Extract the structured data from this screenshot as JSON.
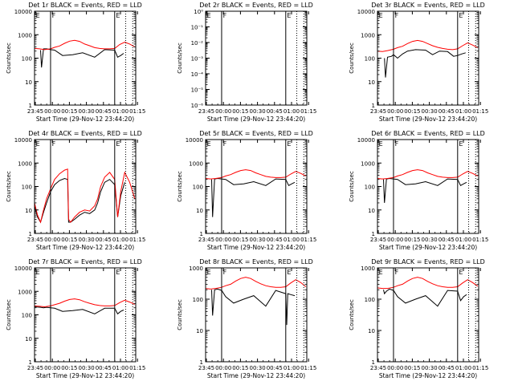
{
  "figure": {
    "background": "#ffffff",
    "axis_color": "#000000",
    "events_color": "#000000",
    "lld_color": "#ff0000",
    "ylabel": "Counts/sec",
    "xlabel": "Start Time (29-Nov-12 23:44:20)",
    "x_tick_labels": [
      "23:45",
      "00:00",
      "00:15",
      "00:30",
      "00:45",
      "01:00",
      "01:15"
    ],
    "vline_markers": [
      "E",
      "F",
      "E"
    ]
  },
  "chart_data": [
    {
      "type": "line",
      "title": "Det 1r BLACK = Events, RED = LLD",
      "xlabel": "Start Time (29-Nov-12 23:44:20)",
      "ylabel": "Counts/sec",
      "yscale": "log",
      "ylim": [
        1,
        10000
      ],
      "y_tick_labels": [
        "1",
        "10",
        "100",
        "1000",
        "10000"
      ],
      "x_minutes_range": [
        0,
        101
      ],
      "vlines_solid_min": [
        16,
        80
      ],
      "vlines_dotted_min": [
        91,
        98
      ],
      "series": [
        {
          "name": "Events",
          "color": "#000000",
          "x": [
            6,
            7,
            9,
            12,
            16,
            20,
            28,
            38,
            48,
            60,
            70,
            80,
            83,
            86,
            89
          ],
          "y": [
            220,
            40,
            250,
            250,
            230,
            220,
            130,
            140,
            170,
            110,
            230,
            220,
            110,
            130,
            160
          ]
        },
        {
          "name": "LLD",
          "color": "#ff0000",
          "x": [
            0,
            5,
            10,
            16,
            20,
            25,
            30,
            35,
            40,
            45,
            50,
            55,
            60,
            65,
            70,
            75,
            80,
            85,
            90,
            95,
            100
          ],
          "y": [
            260,
            250,
            230,
            250,
            290,
            330,
            430,
            530,
            580,
            520,
            400,
            340,
            280,
            260,
            250,
            250,
            260,
            380,
            480,
            400,
            300
          ]
        }
      ]
    },
    {
      "type": "line",
      "title": "Det 2r BLACK = Events, RED = LLD",
      "xlabel": "Start Time (29-Nov-12 23:44:20)",
      "ylabel": "Counts/sec",
      "yscale": "log",
      "ylim": [
        1e-06,
        1
      ],
      "y_tick_labels": [
        "10⁻⁶",
        "10⁻⁵",
        "10⁻⁴",
        "10⁻³",
        "10⁻²",
        "10⁻¹",
        "10⁰"
      ],
      "x_minutes_range": [
        0,
        101
      ],
      "vlines_solid_min": [
        16,
        80
      ],
      "vlines_dotted_min": [
        91,
        98
      ],
      "series": []
    },
    {
      "type": "line",
      "title": "Det 3r BLACK = Events, RED = LLD",
      "xlabel": "Start Time (29-Nov-12 23:44:20)",
      "ylabel": "Counts/sec",
      "yscale": "log",
      "ylim": [
        1,
        10000
      ],
      "y_tick_labels": [
        "1",
        "10",
        "100",
        "1000",
        "10000"
      ],
      "x_minutes_range": [
        0,
        101
      ],
      "vlines_solid_min": [
        16,
        80
      ],
      "vlines_dotted_min": [
        91,
        98
      ],
      "series": [
        {
          "name": "Events",
          "color": "#000000",
          "x": [
            7,
            8,
            10,
            14,
            16,
            20,
            25,
            30,
            38,
            48,
            55,
            62,
            70,
            76,
            80,
            84,
            88
          ],
          "y": [
            100,
            15,
            110,
            120,
            140,
            100,
            150,
            200,
            230,
            220,
            140,
            200,
            190,
            120,
            130,
            150,
            170
          ]
        },
        {
          "name": "LLD",
          "color": "#ff0000",
          "x": [
            0,
            5,
            10,
            16,
            20,
            25,
            30,
            35,
            40,
            45,
            50,
            55,
            60,
            65,
            70,
            75,
            80,
            85,
            90,
            95,
            100
          ],
          "y": [
            200,
            190,
            210,
            240,
            280,
            320,
            420,
            520,
            570,
            520,
            420,
            340,
            290,
            260,
            240,
            230,
            250,
            340,
            450,
            360,
            280
          ]
        }
      ]
    },
    {
      "type": "line",
      "title": "Det 4r BLACK = Events, RED = LLD",
      "xlabel": "Start Time (29-Nov-12 23:44:20)",
      "ylabel": "Counts/sec",
      "yscale": "log",
      "ylim": [
        1,
        10000
      ],
      "y_tick_labels": [
        "1",
        "10",
        "100",
        "1000",
        "10000"
      ],
      "x_minutes_range": [
        0,
        101
      ],
      "vlines_solid_min": [
        16,
        80
      ],
      "vlines_dotted_min": [
        91,
        98
      ],
      "series": [
        {
          "name": "Events",
          "color": "#000000",
          "x": [
            0,
            3,
            6,
            9,
            12,
            16,
            20,
            25,
            30,
            33,
            34,
            36,
            40,
            45,
            50,
            55,
            60,
            63,
            66,
            70,
            75,
            80,
            83,
            86,
            90
          ],
          "y": [
            15,
            5,
            3,
            8,
            20,
            60,
            120,
            180,
            220,
            200,
            3,
            3,
            4,
            6,
            8,
            7,
            10,
            20,
            60,
            150,
            200,
            120,
            5,
            40,
            150
          ]
        },
        {
          "name": "LLD",
          "color": "#ff0000",
          "x": [
            0,
            3,
            6,
            9,
            12,
            16,
            20,
            25,
            30,
            33,
            34,
            36,
            40,
            45,
            50,
            55,
            60,
            63,
            66,
            70,
            75,
            80,
            83,
            86,
            90,
            95,
            100
          ],
          "y": [
            20,
            6,
            3,
            10,
            30,
            80,
            200,
            350,
            500,
            550,
            4,
            3,
            5,
            8,
            10,
            9,
            15,
            30,
            100,
            250,
            400,
            200,
            5,
            60,
            400,
            150,
            30
          ]
        }
      ]
    },
    {
      "type": "line",
      "title": "Det 5r BLACK = Events, RED = LLD",
      "xlabel": "Start Time (29-Nov-12 23:44:20)",
      "ylabel": "Counts/sec",
      "yscale": "log",
      "ylim": [
        1,
        10000
      ],
      "y_tick_labels": [
        "1",
        "10",
        "100",
        "1000",
        "10000"
      ],
      "x_minutes_range": [
        0,
        101
      ],
      "vlines_solid_min": [
        16,
        80
      ],
      "vlines_dotted_min": [
        91,
        98
      ],
      "series": [
        {
          "name": "Events",
          "color": "#000000",
          "x": [
            6,
            7,
            9,
            12,
            16,
            20,
            28,
            38,
            48,
            60,
            70,
            80,
            83,
            86,
            89
          ],
          "y": [
            200,
            5,
            210,
            220,
            210,
            200,
            120,
            130,
            160,
            110,
            210,
            200,
            110,
            130,
            150
          ]
        },
        {
          "name": "LLD",
          "color": "#ff0000",
          "x": [
            0,
            5,
            10,
            16,
            20,
            25,
            30,
            35,
            40,
            45,
            50,
            55,
            60,
            65,
            70,
            75,
            80,
            85,
            90,
            95,
            100
          ],
          "y": [
            220,
            210,
            220,
            240,
            280,
            320,
            400,
            480,
            520,
            480,
            380,
            320,
            270,
            250,
            240,
            240,
            250,
            340,
            440,
            360,
            280
          ]
        }
      ]
    },
    {
      "type": "line",
      "title": "Det 6r BLACK = Events, RED = LLD",
      "xlabel": "Start Time (29-Nov-12 23:44:20)",
      "ylabel": "Counts/sec",
      "yscale": "log",
      "ylim": [
        1,
        10000
      ],
      "y_tick_labels": [
        "1",
        "10",
        "100",
        "1000",
        "10000"
      ],
      "x_minutes_range": [
        0,
        101
      ],
      "vlines_solid_min": [
        16,
        80
      ],
      "vlines_dotted_min": [
        91,
        98
      ],
      "series": [
        {
          "name": "Events",
          "color": "#000000",
          "x": [
            6,
            7,
            9,
            12,
            16,
            20,
            28,
            38,
            48,
            60,
            70,
            80,
            83,
            86,
            89
          ],
          "y": [
            200,
            20,
            210,
            220,
            210,
            200,
            120,
            130,
            160,
            110,
            210,
            200,
            110,
            130,
            150
          ]
        },
        {
          "name": "LLD",
          "color": "#ff0000",
          "x": [
            0,
            5,
            10,
            16,
            20,
            25,
            30,
            35,
            40,
            45,
            50,
            55,
            60,
            65,
            70,
            75,
            80,
            85,
            90,
            95,
            100
          ],
          "y": [
            220,
            210,
            220,
            240,
            280,
            320,
            400,
            480,
            520,
            480,
            380,
            320,
            270,
            250,
            240,
            240,
            250,
            340,
            440,
            360,
            280
          ]
        }
      ]
    },
    {
      "type": "line",
      "title": "Det 7r BLACK = Events, RED = LLD",
      "xlabel": "Start Time (29-Nov-12 23:44:20)",
      "ylabel": "Counts/sec",
      "yscale": "log",
      "ylim": [
        1,
        10000
      ],
      "y_tick_labels": [
        "1",
        "10",
        "100",
        "1000",
        "10000"
      ],
      "x_minutes_range": [
        0,
        101
      ],
      "vlines_solid_min": [
        16,
        80
      ],
      "vlines_dotted_min": [
        91,
        98
      ],
      "series": [
        {
          "name": "Events",
          "color": "#000000",
          "x": [
            0,
            6,
            9,
            12,
            16,
            20,
            28,
            38,
            48,
            60,
            70,
            80,
            83,
            86,
            89
          ],
          "y": [
            220,
            210,
            200,
            210,
            200,
            190,
            140,
            150,
            170,
            110,
            190,
            190,
            110,
            140,
            160
          ]
        },
        {
          "name": "LLD",
          "color": "#ff0000",
          "x": [
            0,
            5,
            10,
            16,
            20,
            25,
            30,
            35,
            40,
            45,
            50,
            55,
            60,
            65,
            70,
            75,
            80,
            85,
            90,
            95,
            100
          ],
          "y": [
            240,
            230,
            220,
            240,
            270,
            310,
            380,
            450,
            480,
            440,
            360,
            310,
            270,
            250,
            240,
            240,
            250,
            330,
            420,
            350,
            280
          ]
        }
      ]
    },
    {
      "type": "line",
      "title": "Det 8r BLACK = Events, RED = LLD",
      "xlabel": "Start Time (29-Nov-12 23:44:20)",
      "ylabel": "Counts/sec",
      "yscale": "log",
      "ylim": [
        1,
        1000
      ],
      "y_tick_labels": [
        "1",
        "10",
        "100",
        "1000"
      ],
      "x_minutes_range": [
        0,
        101
      ],
      "vlines_solid_min": [
        16,
        80
      ],
      "vlines_dotted_min": [
        91,
        98
      ],
      "series": [
        {
          "name": "Events",
          "color": "#000000",
          "x": [
            6,
            7,
            9,
            12,
            16,
            20,
            28,
            38,
            48,
            60,
            70,
            80,
            81,
            82,
            85,
            89
          ],
          "y": [
            200,
            30,
            200,
            210,
            190,
            120,
            75,
            100,
            130,
            60,
            190,
            150,
            15,
            150,
            140,
            130
          ]
        },
        {
          "name": "LLD",
          "color": "#ff0000",
          "x": [
            0,
            5,
            10,
            16,
            20,
            25,
            30,
            35,
            40,
            45,
            50,
            55,
            60,
            65,
            70,
            75,
            80,
            85,
            90,
            95,
            100
          ],
          "y": [
            220,
            210,
            220,
            240,
            270,
            300,
            380,
            460,
            500,
            460,
            370,
            310,
            270,
            250,
            240,
            240,
            250,
            330,
            420,
            340,
            250
          ]
        }
      ]
    },
    {
      "type": "line",
      "title": "Det 9r BLACK = Events, RED = LLD",
      "xlabel": "Start Time (29-Nov-12 23:44:20)",
      "ylabel": "Counts/sec",
      "yscale": "log",
      "ylim": [
        1,
        1000
      ],
      "y_tick_labels": [
        "1",
        "10",
        "100",
        "1000"
      ],
      "x_minutes_range": [
        0,
        101
      ],
      "vlines_solid_min": [
        16,
        80
      ],
      "vlines_dotted_min": [
        91,
        98
      ],
      "series": [
        {
          "name": "Events",
          "color": "#000000",
          "x": [
            6,
            7,
            9,
            12,
            16,
            20,
            28,
            38,
            48,
            60,
            70,
            80,
            83,
            86,
            89
          ],
          "y": [
            200,
            150,
            180,
            210,
            190,
            120,
            75,
            100,
            130,
            60,
            190,
            180,
            90,
            120,
            140
          ]
        },
        {
          "name": "LLD",
          "color": "#ff0000",
          "x": [
            0,
            5,
            10,
            16,
            20,
            25,
            30,
            35,
            40,
            45,
            50,
            55,
            60,
            65,
            70,
            75,
            80,
            85,
            90,
            95,
            100
          ],
          "y": [
            230,
            220,
            220,
            240,
            270,
            300,
            380,
            460,
            500,
            460,
            370,
            310,
            270,
            250,
            240,
            240,
            250,
            330,
            420,
            340,
            260
          ]
        }
      ]
    }
  ]
}
